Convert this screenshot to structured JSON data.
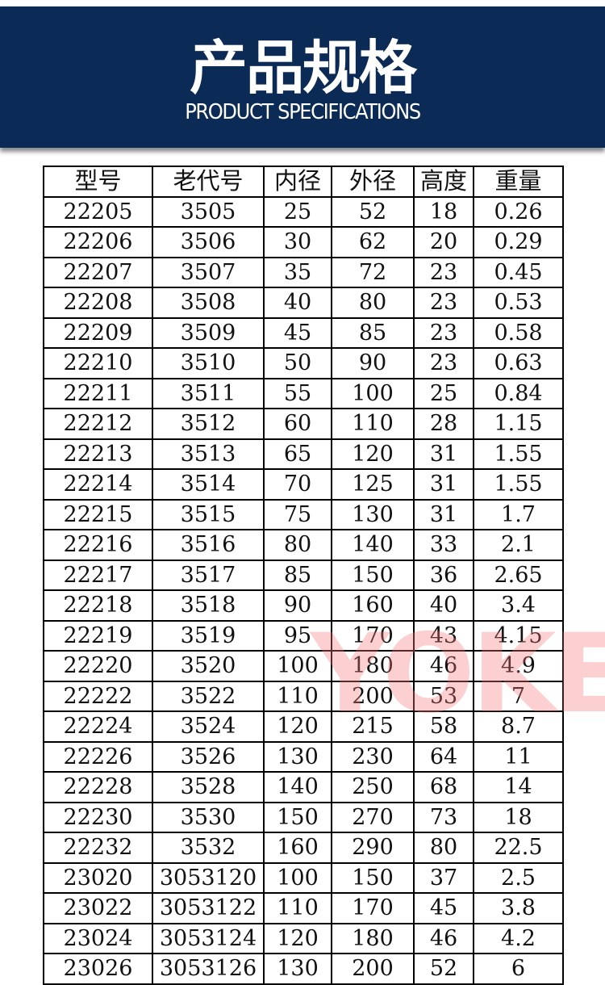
{
  "banner": {
    "title": "产品规格",
    "subtitle": "PRODUCT SPECIFICATIONS",
    "bg_color": "#0b2a55"
  },
  "watermark": "YOKE",
  "table": {
    "headers": [
      "型号",
      "老代号",
      "内径",
      "外径",
      "高度",
      "重量"
    ],
    "rows": [
      [
        "22205",
        "3505",
        "25",
        "52",
        "18",
        "0.26"
      ],
      [
        "22206",
        "3506",
        "30",
        "62",
        "20",
        "0.29"
      ],
      [
        "22207",
        "3507",
        "35",
        "72",
        "23",
        "0.45"
      ],
      [
        "22208",
        "3508",
        "40",
        "80",
        "23",
        "0.53"
      ],
      [
        "22209",
        "3509",
        "45",
        "85",
        "23",
        "0.58"
      ],
      [
        "22210",
        "3510",
        "50",
        "90",
        "23",
        "0.63"
      ],
      [
        "22211",
        "3511",
        "55",
        "100",
        "25",
        "0.84"
      ],
      [
        "22212",
        "3512",
        "60",
        "110",
        "28",
        "1.15"
      ],
      [
        "22213",
        "3513",
        "65",
        "120",
        "31",
        "1.55"
      ],
      [
        "22214",
        "3514",
        "70",
        "125",
        "31",
        "1.55"
      ],
      [
        "22215",
        "3515",
        "75",
        "130",
        "31",
        "1.7"
      ],
      [
        "22216",
        "3516",
        "80",
        "140",
        "33",
        "2.1"
      ],
      [
        "22217",
        "3517",
        "85",
        "150",
        "36",
        "2.65"
      ],
      [
        "22218",
        "3518",
        "90",
        "160",
        "40",
        "3.4"
      ],
      [
        "22219",
        "3519",
        "95",
        "170",
        "43",
        "4.15"
      ],
      [
        "22220",
        "3520",
        "100",
        "180",
        "46",
        "4.9"
      ],
      [
        "22222",
        "3522",
        "110",
        "200",
        "53",
        "7"
      ],
      [
        "22224",
        "3524",
        "120",
        "215",
        "58",
        "8.7"
      ],
      [
        "22226",
        "3526",
        "130",
        "230",
        "64",
        "11"
      ],
      [
        "22228",
        "3528",
        "140",
        "250",
        "68",
        "14"
      ],
      [
        "22230",
        "3530",
        "150",
        "270",
        "73",
        "18"
      ],
      [
        "22232",
        "3532",
        "160",
        "290",
        "80",
        "22.5"
      ],
      [
        "23020",
        "3053120",
        "100",
        "150",
        "37",
        "2.5"
      ],
      [
        "23022",
        "3053122",
        "110",
        "170",
        "45",
        "3.8"
      ],
      [
        "23024",
        "3053124",
        "120",
        "180",
        "46",
        "4.2"
      ],
      [
        "23026",
        "3053126",
        "130",
        "200",
        "52",
        "6"
      ]
    ]
  }
}
